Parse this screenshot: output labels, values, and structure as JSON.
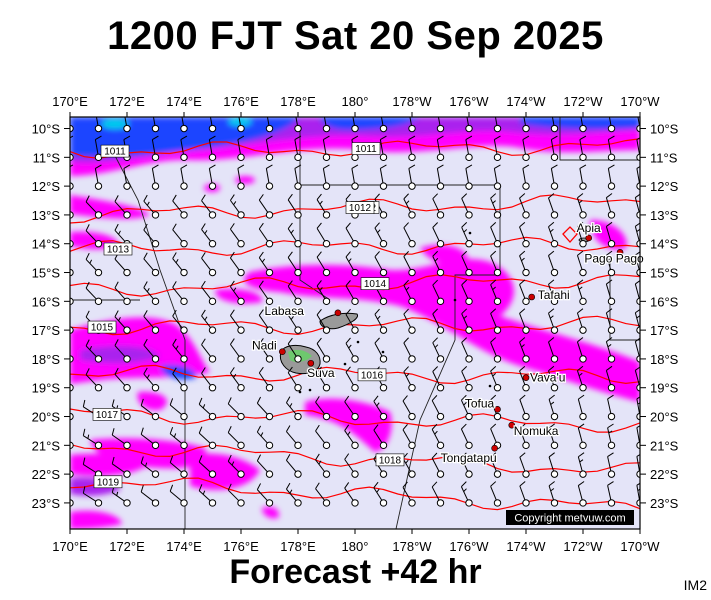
{
  "header": {
    "title": "1200 FJT Sat 20 Sep 2025",
    "forecast": "Forecast +42 hr",
    "panel_id": "IM2",
    "copyright": "Copyright metvuw.com"
  },
  "axes": {
    "lon_labels": [
      "170°E",
      "172°E",
      "174°E",
      "176°E",
      "178°E",
      "180°",
      "178°W",
      "176°W",
      "174°W",
      "172°W",
      "170°W"
    ],
    "lat_labels": [
      "10°S",
      "11°S",
      "12°S",
      "13°S",
      "14°S",
      "15°S",
      "16°S",
      "17°S",
      "18°S",
      "19°S",
      "20°S",
      "21°S",
      "22°S",
      "23°S"
    ],
    "lon_range_east": [
      170,
      190
    ],
    "lat_range_south": [
      10,
      23.5
    ]
  },
  "isobars": [
    {
      "label": "1011",
      "lat_at_west": 10.8,
      "lat_at_east": 10.6
    },
    {
      "label": "1012",
      "lat_at_west": 13.0,
      "lat_at_east": 12.5
    },
    {
      "label": "1013",
      "lat_at_west": 14.2,
      "lat_at_east": 14.0
    },
    {
      "label": "1014",
      "lat_at_west": 15.6,
      "lat_at_east": 15.2
    },
    {
      "label": "1015",
      "lat_at_west": 16.9,
      "lat_at_east": 16.8
    },
    {
      "label": "1016",
      "lat_at_west": 18.5,
      "lat_at_east": 18.6
    },
    {
      "label": "1017",
      "lat_at_west": 19.9,
      "lat_at_east": 20.3
    },
    {
      "label": "1018",
      "lat_at_west": 21.0,
      "lat_at_east": 21.9
    },
    {
      "label": "1019",
      "lat_at_west": 22.2,
      "lat_at_east": 23.2
    }
  ],
  "places": [
    {
      "name": "Apia",
      "lon": 188.2,
      "lat": 13.8
    },
    {
      "name": "Pago Pago",
      "lon": 189.3,
      "lat": 14.3
    },
    {
      "name": "Tafahi",
      "lon": 186.2,
      "lat": 15.85
    },
    {
      "name": "Labasa",
      "lon": 179.4,
      "lat": 16.4
    },
    {
      "name": "Nadi",
      "lon": 177.45,
      "lat": 17.75
    },
    {
      "name": "Suva",
      "lon": 178.45,
      "lat": 18.15
    },
    {
      "name": "Vava'u",
      "lon": 186.0,
      "lat": 18.65
    },
    {
      "name": "Tofua",
      "lon": 185.0,
      "lat": 19.75
    },
    {
      "name": "Nomuka",
      "lon": 185.5,
      "lat": 20.3
    },
    {
      "name": "Tongatapu",
      "lon": 184.9,
      "lat": 21.1
    }
  ],
  "colors": {
    "background": "#e4e4f8",
    "rain_light": "#ff00ff",
    "rain_medium": "#aa22ee",
    "rain_heavy": "#1e44ff",
    "rain_extreme": "#00ccee",
    "isobar": "#ff0000",
    "city_dot": "#cc0000"
  }
}
